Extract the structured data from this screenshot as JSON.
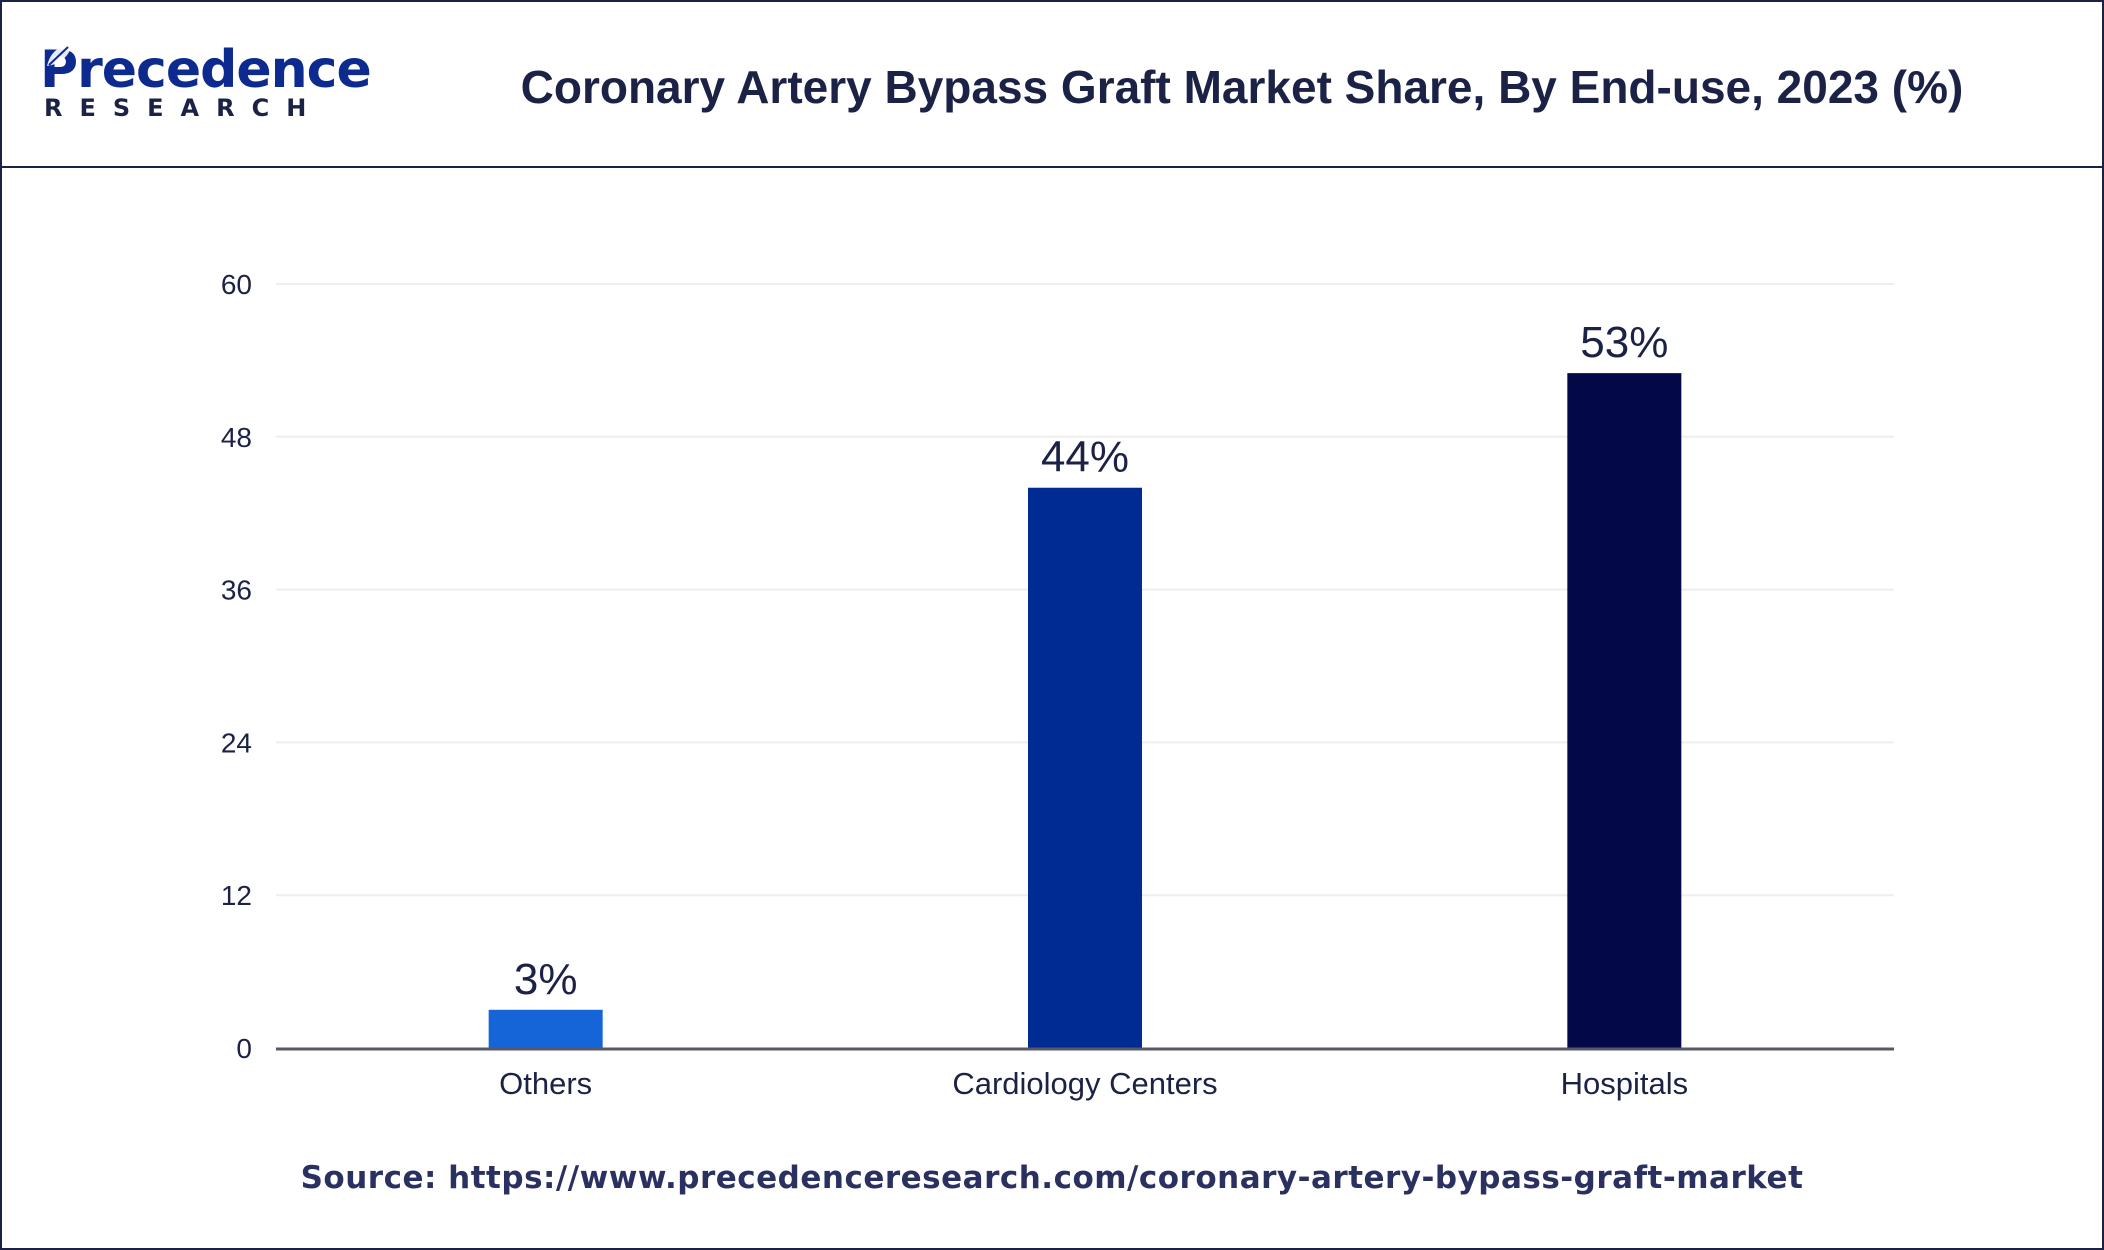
{
  "brand": {
    "name": "Precedence",
    "tagline": "RESEARCH",
    "icon": "leaf-icon",
    "color": "#0d2a8e"
  },
  "title": "Coronary Artery Bypass Graft Market Share, By End-use, 2023 (%)",
  "source": {
    "label": "Source:",
    "url": "https://www.precedenceresearch.com/coronary-artery-bypass-graft-market"
  },
  "chart_data": {
    "type": "bar",
    "title": "Coronary Artery Bypass Graft Market Share, By End-use, 2023 (%)",
    "xlabel": "",
    "ylabel": "",
    "categories": [
      "Others",
      "Cardiology Centers",
      "Hospitals"
    ],
    "values": [
      3,
      44,
      53
    ],
    "data_labels": [
      "3%",
      "44%",
      "53%"
    ],
    "bar_colors": [
      "#1565d8",
      "#002b92",
      "#020848"
    ],
    "ylim": [
      0,
      60
    ],
    "yticks": [
      0,
      12,
      24,
      36,
      48,
      60
    ],
    "grid": true,
    "legend": "none"
  }
}
